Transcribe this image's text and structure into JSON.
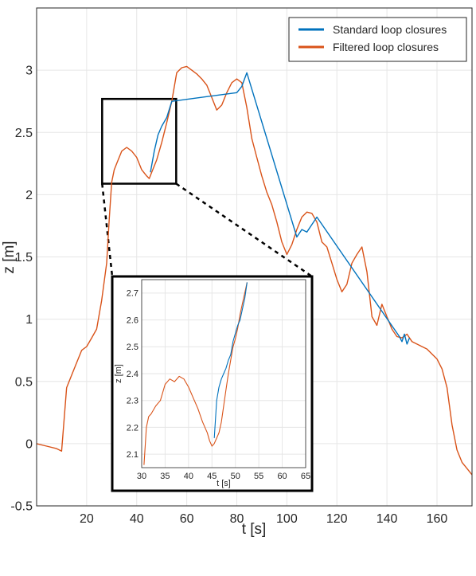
{
  "chart_data": [
    {
      "type": "line",
      "xlabel": "t [s]",
      "ylabel": "z [m]",
      "xlim": [
        0,
        174
      ],
      "ylim": [
        -0.5,
        3.5
      ],
      "xticks": [
        "20",
        "40",
        "60",
        "80",
        "100",
        "120",
        "140",
        "160"
      ],
      "yticks": [
        "-0.5",
        "0",
        "0.5",
        "1",
        "1.5",
        "2",
        "2.5",
        "3"
      ],
      "grid": true,
      "legend_position": "top-right",
      "series": [
        {
          "name": "Standard loop closures",
          "color": "#0072BD",
          "x": [
            45.5,
            47,
            48.5,
            50,
            52,
            54,
            80,
            82,
            84,
            104,
            106,
            108,
            110,
            112,
            145,
            146,
            147,
            148,
            149
          ],
          "y": [
            2.18,
            2.35,
            2.48,
            2.55,
            2.62,
            2.75,
            2.82,
            2.87,
            2.98,
            1.66,
            1.72,
            1.7,
            1.76,
            1.82,
            0.86,
            0.82,
            0.88,
            0.8,
            0.85
          ]
        },
        {
          "name": "Filtered loop closures",
          "color": "#D95319",
          "x": [
            0,
            4,
            8,
            10,
            12,
            14,
            16,
            18,
            20,
            22,
            24,
            26,
            28,
            29,
            30,
            31,
            32,
            34,
            36,
            38,
            40,
            42,
            44,
            45,
            46,
            48,
            50,
            52,
            54,
            56,
            58,
            60,
            62,
            64,
            66,
            68,
            70,
            72,
            74,
            76,
            78,
            80,
            82,
            84,
            86,
            88,
            90,
            92,
            94,
            96,
            98,
            100,
            102,
            104,
            106,
            108,
            110,
            112,
            114,
            116,
            118,
            120,
            122,
            124,
            126,
            128,
            130,
            132,
            134,
            136,
            138,
            140,
            142,
            144,
            146,
            148,
            150,
            152,
            154,
            156,
            158,
            160,
            162,
            164,
            166,
            168,
            170,
            172,
            174
          ],
          "y": [
            0.0,
            -0.02,
            -0.04,
            -0.06,
            0.45,
            0.55,
            0.65,
            0.75,
            0.78,
            0.85,
            0.92,
            1.15,
            1.45,
            1.8,
            2.1,
            2.2,
            2.25,
            2.35,
            2.38,
            2.35,
            2.3,
            2.2,
            2.15,
            2.13,
            2.18,
            2.28,
            2.42,
            2.58,
            2.75,
            2.98,
            3.02,
            3.03,
            3.0,
            2.97,
            2.93,
            2.88,
            2.78,
            2.68,
            2.72,
            2.82,
            2.9,
            2.93,
            2.9,
            2.7,
            2.45,
            2.3,
            2.15,
            2.02,
            1.92,
            1.78,
            1.62,
            1.52,
            1.6,
            1.72,
            1.82,
            1.86,
            1.85,
            1.78,
            1.62,
            1.58,
            1.45,
            1.32,
            1.22,
            1.28,
            1.45,
            1.52,
            1.58,
            1.38,
            1.02,
            0.95,
            1.12,
            1.02,
            0.92,
            0.86,
            0.85,
            0.88,
            0.82,
            0.8,
            0.78,
            0.76,
            0.72,
            0.68,
            0.6,
            0.45,
            0.15,
            -0.05,
            -0.15,
            -0.2,
            -0.25
          ]
        }
      ]
    },
    {
      "type": "line",
      "xlabel": "t [s]",
      "ylabel": "z [m]",
      "xlim": [
        30,
        65
      ],
      "ylim": [
        2.05,
        2.75
      ],
      "xticks": [
        "30",
        "35",
        "40",
        "45",
        "50",
        "55",
        "60",
        "65"
      ],
      "yticks": [
        "2.1",
        "2.2",
        "2.3",
        "2.4",
        "2.5",
        "2.6",
        "2.7"
      ],
      "grid": true,
      "series": [
        {
          "name": "Standard loop closures",
          "color": "#0072BD",
          "x": [
            45.5,
            46,
            46.5,
            47,
            47.5,
            48,
            48.5,
            49,
            49.5,
            50,
            50.5,
            51,
            51.5,
            52,
            52.5
          ],
          "y": [
            2.16,
            2.3,
            2.35,
            2.38,
            2.4,
            2.42,
            2.45,
            2.47,
            2.52,
            2.55,
            2.58,
            2.6,
            2.64,
            2.68,
            2.74
          ]
        },
        {
          "name": "Filtered loop closures",
          "color": "#D95319",
          "x": [
            30.5,
            31,
            31.5,
            32,
            33,
            34,
            35,
            36,
            37,
            38,
            39,
            40,
            41,
            42,
            43,
            44,
            44.5,
            45,
            45.5,
            46,
            46.5,
            47,
            47.5,
            48,
            48.5,
            49,
            49.5,
            50,
            50.5,
            51,
            51.5,
            52,
            52.5
          ],
          "y": [
            2.06,
            2.2,
            2.24,
            2.25,
            2.28,
            2.3,
            2.36,
            2.38,
            2.37,
            2.39,
            2.38,
            2.35,
            2.31,
            2.27,
            2.22,
            2.18,
            2.15,
            2.13,
            2.14,
            2.16,
            2.18,
            2.22,
            2.28,
            2.34,
            2.4,
            2.45,
            2.5,
            2.53,
            2.57,
            2.62,
            2.66,
            2.7,
            2.74
          ]
        }
      ]
    }
  ]
}
